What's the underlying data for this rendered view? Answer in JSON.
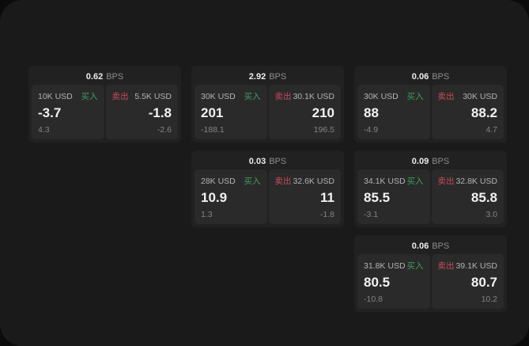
{
  "labels": {
    "bps": "BPS",
    "buy": "买入",
    "sell": "卖出"
  },
  "colors": {
    "buy": "#3f9e64",
    "sell": "#c9495e",
    "window_bg": "#1a1a1a",
    "card_bg": "#212121",
    "panel_bg": "#2a2a2a"
  },
  "cards": [
    {
      "bps": "0.62",
      "buy": {
        "amount": "10K USD",
        "value": "-3.7",
        "sub": "4.3"
      },
      "sell": {
        "amount": "5.5K USD",
        "value": "-1.8",
        "sub": "-2.6"
      }
    },
    {
      "bps": "2.92",
      "buy": {
        "amount": "30K USD",
        "value": "201",
        "sub": "-188.1"
      },
      "sell": {
        "amount": "30.1K USD",
        "value": "210",
        "sub": "196.5"
      }
    },
    {
      "bps": "0.06",
      "buy": {
        "amount": "30K USD",
        "value": "88",
        "sub": "-4.9"
      },
      "sell": {
        "amount": "30K USD",
        "value": "88.2",
        "sub": "4.7"
      }
    },
    {
      "bps": "0.03",
      "buy": {
        "amount": "28K USD",
        "value": "10.9",
        "sub": "1.3"
      },
      "sell": {
        "amount": "32.6K USD",
        "value": "11",
        "sub": "-1.8"
      }
    },
    {
      "bps": "0.09",
      "buy": {
        "amount": "34.1K USD",
        "value": "85.5",
        "sub": "-3.1"
      },
      "sell": {
        "amount": "32.8K USD",
        "value": "85.8",
        "sub": "3.0"
      }
    },
    {
      "bps": "0.06",
      "buy": {
        "amount": "31.8K USD",
        "value": "80.5",
        "sub": "-10.8"
      },
      "sell": {
        "amount": "39.1K USD",
        "value": "80.7",
        "sub": "10.2"
      }
    }
  ]
}
